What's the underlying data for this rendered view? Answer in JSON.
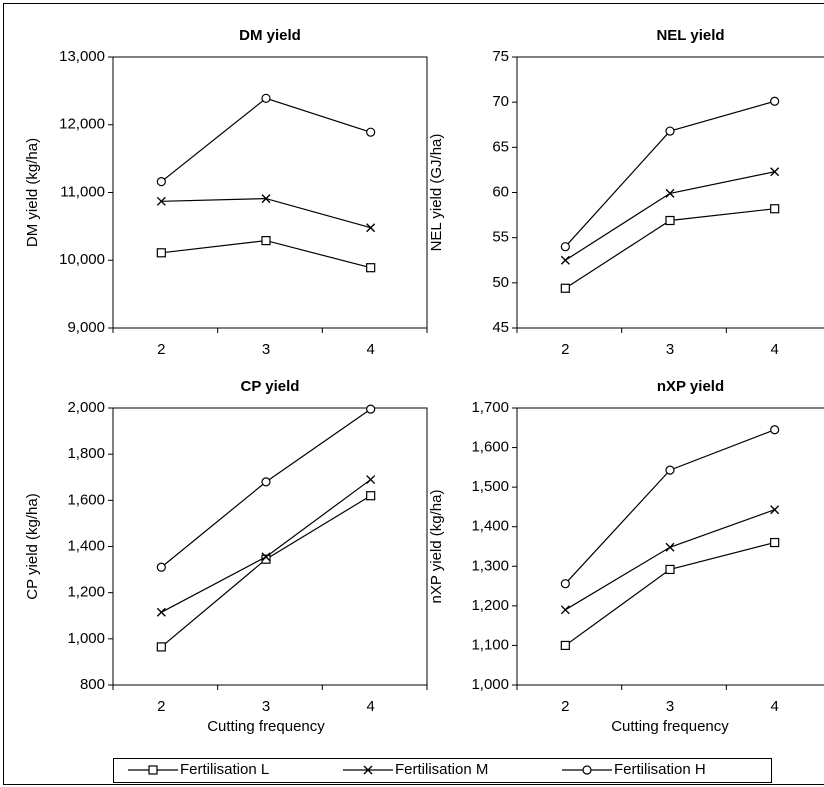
{
  "chart_data": [
    {
      "type": "line",
      "title": "DM yield",
      "y_label": "DM yield (kg/ha)",
      "categories": [
        "2",
        "3",
        "4"
      ],
      "ylim": [
        9000,
        13000
      ],
      "yticks": [
        {
          "value": 9000,
          "label": "9,000"
        },
        {
          "value": 10000,
          "label": "10,000"
        },
        {
          "value": 11000,
          "label": "11,000"
        },
        {
          "value": 12000,
          "label": "12,000"
        },
        {
          "value": 13000,
          "label": "13,000"
        }
      ],
      "legend": "bottom",
      "series": [
        {
          "name": "Fertilisation L",
          "color": "#000000",
          "marker": "square",
          "values": [
            10110,
            10290,
            9890
          ]
        },
        {
          "name": "Fertilisation M",
          "color": "#000000",
          "marker": "x",
          "values": [
            10870,
            10910,
            10480
          ]
        },
        {
          "name": "Fertilisation H",
          "color": "#000000",
          "marker": "circle",
          "values": [
            11160,
            12390,
            11890
          ]
        }
      ]
    },
    {
      "type": "line",
      "title": "NEL yield",
      "y_label": "NEL yield (GJ/ha)",
      "categories": [
        "2",
        "3",
        "4"
      ],
      "ylim": [
        45,
        75
      ],
      "yticks": [
        45,
        50,
        55,
        60,
        65,
        70,
        75
      ],
      "series": [
        {
          "color": "#000000",
          "marker": "square",
          "values": [
            49.4,
            56.9,
            58.2
          ]
        },
        {
          "color": "#000000",
          "marker": "x",
          "values": [
            52.5,
            59.9,
            62.3
          ]
        },
        {
          "color": "#000000",
          "marker": "circle",
          "values": [
            54.0,
            66.8,
            70.1
          ]
        }
      ]
    },
    {
      "type": "line",
      "title": "CP yield",
      "y_label": "CP yield (kg/ha)",
      "x_label": "Cutting frequency",
      "categories": [
        "2",
        "3",
        "4"
      ],
      "ylim": [
        800,
        2000
      ],
      "yticks": [
        800,
        {
          "value": 1000,
          "label": "1,000"
        },
        {
          "value": 1200,
          "label": "1,200"
        },
        {
          "value": 1400,
          "label": "1,400"
        },
        {
          "value": 1600,
          "label": "1,600"
        },
        {
          "value": 1800,
          "label": "1,800"
        },
        {
          "value": 2000,
          "label": "2,000"
        }
      ],
      "series": [
        {
          "color": "#000000",
          "marker": "square",
          "values": [
            965,
            1345,
            1620
          ]
        },
        {
          "color": "#000000",
          "marker": "x",
          "values": [
            1115,
            1355,
            1690
          ]
        },
        {
          "color": "#000000",
          "marker": "circle",
          "values": [
            1310,
            1680,
            1995
          ]
        }
      ]
    },
    {
      "type": "line",
      "title": "nXP yield",
      "y_label": "nXP yield (kg/ha)",
      "x_label": "Cutting frequency",
      "categories": [
        "2",
        "3",
        "4"
      ],
      "ylim": [
        1000,
        1700
      ],
      "yticks": [
        {
          "value": 1000,
          "label": "1,000"
        },
        {
          "value": 1100,
          "label": "1,100"
        },
        {
          "value": 1200,
          "label": "1,200"
        },
        {
          "value": 1300,
          "label": "1,300"
        },
        {
          "value": 1400,
          "label": "1,400"
        },
        {
          "value": 1500,
          "label": "1,500"
        },
        {
          "value": 1600,
          "label": "1,600"
        },
        {
          "value": 1700,
          "label": "1,700"
        }
      ],
      "series": [
        {
          "color": "#000000",
          "marker": "square",
          "values": [
            1100,
            1292,
            1360
          ]
        },
        {
          "color": "#000000",
          "marker": "x",
          "values": [
            1190,
            1348,
            1443
          ]
        },
        {
          "color": "#000000",
          "marker": "circle",
          "values": [
            1256,
            1543,
            1645
          ]
        }
      ]
    }
  ]
}
